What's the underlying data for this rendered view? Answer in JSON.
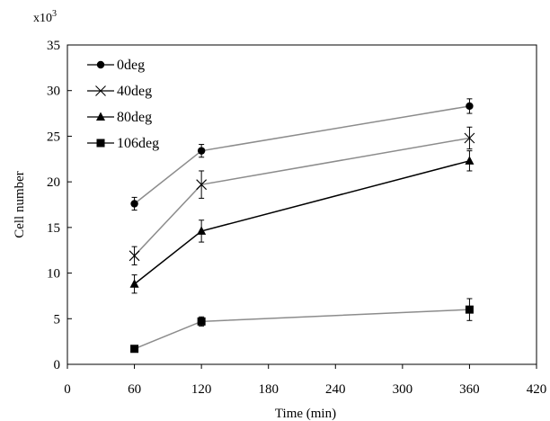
{
  "chart_data": {
    "type": "line",
    "xlabel": "Time (min)",
    "ylabel": "Cell number",
    "y_multiplier_label": {
      "base": "x10",
      "exp": "3"
    },
    "xlim": [
      0,
      420
    ],
    "ylim": [
      0,
      35
    ],
    "x_ticks": [
      0,
      60,
      120,
      180,
      240,
      300,
      360,
      420
    ],
    "y_ticks": [
      0,
      5,
      10,
      15,
      20,
      25,
      30,
      35
    ],
    "x_tick_labels": [
      "0",
      "60",
      "120",
      "180",
      "240",
      "300",
      "360",
      "420"
    ],
    "y_tick_labels": [
      "0",
      "5",
      "10",
      "15",
      "20",
      "25",
      "30",
      "35"
    ],
    "grid": false,
    "legend_position": "top-left inside",
    "series": [
      {
        "name": "0deg",
        "marker": "circle",
        "line_color": "#8c8c8c",
        "x": [
          60,
          120,
          360
        ],
        "y": [
          17.6,
          23.4,
          28.3
        ],
        "err": [
          0.7,
          0.7,
          0.8
        ]
      },
      {
        "name": "40deg",
        "marker": "x",
        "line_color": "#8c8c8c",
        "x": [
          60,
          120,
          360
        ],
        "y": [
          11.9,
          19.7,
          24.8
        ],
        "err": [
          1.0,
          1.5,
          1.2
        ]
      },
      {
        "name": "80deg",
        "marker": "triangle",
        "line_color": "#000000",
        "x": [
          60,
          120,
          360
        ],
        "y": [
          8.8,
          14.6,
          22.3
        ],
        "err": [
          1.0,
          1.2,
          1.1
        ]
      },
      {
        "name": "106deg",
        "marker": "square",
        "line_color": "#8c8c8c",
        "x": [
          60,
          120,
          360
        ],
        "y": [
          1.7,
          4.7,
          6.0
        ],
        "err": [
          0.2,
          0.5,
          1.2
        ]
      }
    ]
  }
}
